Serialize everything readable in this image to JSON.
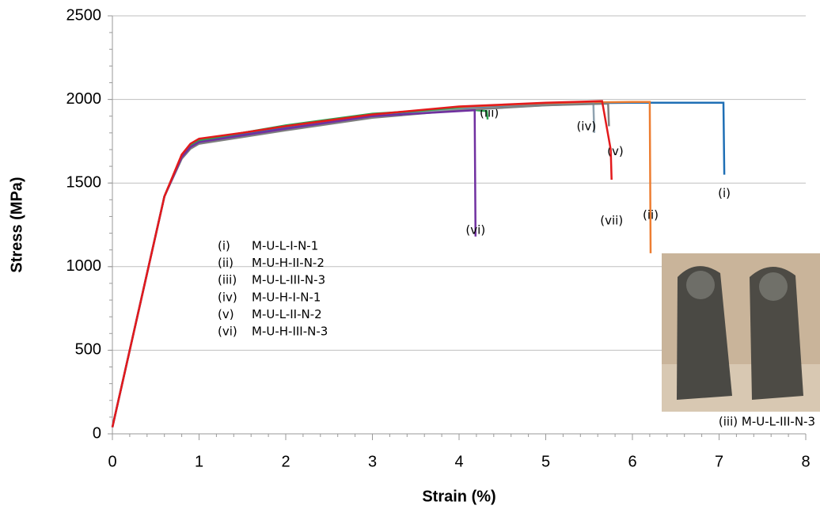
{
  "chart_data": {
    "type": "line",
    "x_label": "Strain (%)",
    "y_label": "Stress (MPa)",
    "xlim": [
      0,
      8
    ],
    "xticks": [
      0,
      1,
      2,
      3,
      4,
      5,
      6,
      7,
      8
    ],
    "ylim": [
      0,
      2500
    ],
    "yticks": [
      0,
      500,
      1000,
      1500,
      2000,
      2500
    ],
    "grid": true,
    "series": [
      {
        "label": "(i)",
        "color": "#1f6fb5",
        "x": [
          0,
          0.2,
          0.4,
          0.6,
          0.8,
          0.9,
          1.0,
          1.5,
          2,
          3,
          4,
          5,
          6,
          7.05,
          7.06
        ],
        "values": [
          40,
          500,
          960,
          1420,
          1660,
          1720,
          1750,
          1790,
          1830,
          1905,
          1950,
          1975,
          1980,
          1980,
          1550
        ]
      },
      {
        "label": "(ii)",
        "color": "#ed7d31",
        "x": [
          0,
          0.2,
          0.4,
          0.6,
          0.8,
          0.9,
          1.0,
          1.5,
          2,
          3,
          4,
          5,
          6,
          6.2,
          6.21
        ],
        "values": [
          40,
          500,
          960,
          1420,
          1670,
          1730,
          1760,
          1800,
          1840,
          1910,
          1955,
          1978,
          1985,
          1985,
          1080
        ]
      },
      {
        "label": "(iii)",
        "color": "#2ea44f",
        "x": [
          0,
          0.2,
          0.4,
          0.6,
          0.8,
          0.9,
          1.0,
          1.5,
          2,
          3,
          4,
          4.32,
          4.33
        ],
        "values": [
          40,
          500,
          960,
          1420,
          1665,
          1725,
          1755,
          1800,
          1845,
          1915,
          1945,
          1930,
          1880
        ]
      },
      {
        "label": "(iv)",
        "color": "#8fa2b0",
        "x": [
          0,
          0.2,
          0.4,
          0.6,
          0.8,
          0.9,
          1.0,
          1.5,
          2,
          3,
          4,
          5,
          5.55,
          5.56
        ],
        "values": [
          40,
          500,
          960,
          1420,
          1650,
          1710,
          1740,
          1780,
          1820,
          1895,
          1940,
          1965,
          1975,
          1800
        ]
      },
      {
        "label": "(v)",
        "color": "#7f7f7f",
        "x": [
          0,
          0.2,
          0.4,
          0.6,
          0.8,
          0.9,
          1.0,
          1.5,
          2,
          3,
          4,
          5,
          5.72,
          5.73
        ],
        "values": [
          40,
          500,
          960,
          1420,
          1645,
          1705,
          1735,
          1775,
          1815,
          1890,
          1935,
          1965,
          1975,
          1840
        ]
      },
      {
        "label": "(vi)",
        "color": "#7030a0",
        "x": [
          0,
          0.2,
          0.4,
          0.6,
          0.8,
          0.9,
          1.0,
          1.5,
          2,
          3,
          4,
          4.18,
          4.19
        ],
        "values": [
          40,
          500,
          960,
          1420,
          1655,
          1715,
          1745,
          1785,
          1825,
          1900,
          1930,
          1935,
          1180
        ]
      },
      {
        "label": "(vii)",
        "color": "#e31a1c",
        "x": [
          0,
          0.2,
          0.4,
          0.6,
          0.8,
          0.9,
          1.0,
          1.5,
          2,
          3,
          4,
          5,
          5.65,
          5.75,
          5.76
        ],
        "values": [
          40,
          500,
          960,
          1420,
          1670,
          1735,
          1765,
          1800,
          1840,
          1910,
          1958,
          1980,
          1990,
          1700,
          1520
        ]
      }
    ],
    "legend": [
      {
        "key": "(i)",
        "name": "M-U-L-I-N-1"
      },
      {
        "key": "(ii)",
        "name": "M-U-H-II-N-2"
      },
      {
        "key": "(iii)",
        "name": "M-U-L-III-N-3"
      },
      {
        "key": "(iv)",
        "name": "M-U-H-I-N-1"
      },
      {
        "key": "(v)",
        "name": "M-U-L-II-N-2"
      },
      {
        "key": "(vi)",
        "name": "M-U-H-III-N-3"
      }
    ],
    "inset_caption": "(iii)  M-U-L-III-N-3"
  }
}
